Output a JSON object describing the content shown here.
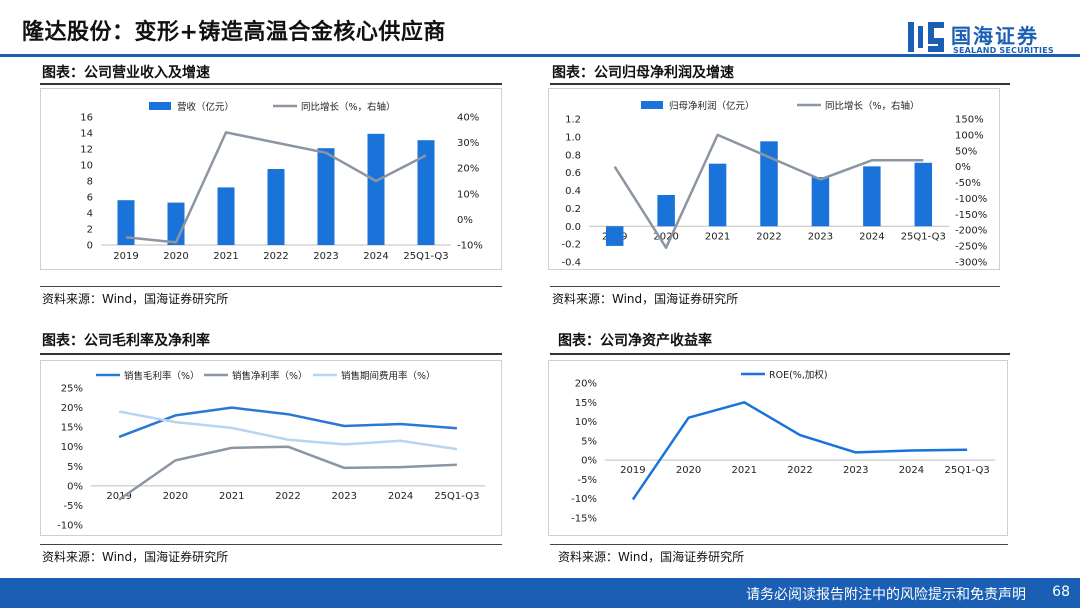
{
  "header": {
    "title": "隆达股份：变形+铸造高温合金核心供应商",
    "logo_cn": "国海证券",
    "logo_en": "SEALAND SECURITIES"
  },
  "panels": {
    "p1": {
      "title": "图表：公司营业收入及增速",
      "source": "资料来源：Wind，国海证券研究所"
    },
    "p2": {
      "title": "图表：公司归母净利润及增速",
      "source": "资料来源：Wind，国海证券研究所"
    },
    "p3": {
      "title": "图表：公司毛利率及净利率",
      "source": "资料来源：Wind，国海证券研究所"
    },
    "p4": {
      "title": "图表：公司净资产收益率",
      "source": "资料来源：Wind，国海证券研究所"
    }
  },
  "footer": {
    "disclaimer": "请务必阅读报告附注中的风险提示和免责声明",
    "page": "68"
  },
  "chart_data": [
    {
      "type": "bar",
      "categories": [
        "2019",
        "2020",
        "2021",
        "2022",
        "2023",
        "2024",
        "25Q1-Q3"
      ],
      "series": [
        {
          "name": "营收（亿元）",
          "kind": "bar",
          "axis": "left",
          "values": [
            5.6,
            5.3,
            7.2,
            9.5,
            12.1,
            13.9,
            13.1
          ]
        },
        {
          "name": "同比增长（%，右轴）",
          "kind": "line",
          "axis": "right",
          "values": [
            -7,
            -9,
            34,
            30,
            26,
            15,
            25
          ]
        }
      ],
      "ylim": [
        0,
        16
      ],
      "yticks": [
        "0",
        "2",
        "4",
        "6",
        "8",
        "10",
        "12",
        "14",
        "16"
      ],
      "y2lim": [
        -10,
        40
      ],
      "y2ticks": [
        "-10%",
        "0%",
        "10%",
        "20%",
        "30%",
        "40%"
      ],
      "colors": {
        "bar": "#1a73d9",
        "line": "#8c96a3"
      }
    },
    {
      "type": "bar",
      "categories": [
        "2019",
        "2020",
        "2021",
        "2022",
        "2023",
        "2024",
        "25Q1-Q3"
      ],
      "series": [
        {
          "name": "归母净利润（亿元）",
          "kind": "bar",
          "axis": "left",
          "values": [
            -0.22,
            0.35,
            0.7,
            0.95,
            0.55,
            0.67,
            0.71
          ]
        },
        {
          "name": "同比增长（%，右轴）",
          "kind": "line",
          "axis": "right",
          "values": [
            0,
            -255,
            100,
            30,
            -40,
            20,
            20
          ]
        }
      ],
      "ylim": [
        -0.4,
        1.2
      ],
      "yticks": [
        "-0.4",
        "-0.2",
        "0.0",
        "0.2",
        "0.4",
        "0.6",
        "0.8",
        "1.0",
        "1.2"
      ],
      "y2lim": [
        -300,
        150
      ],
      "y2ticks": [
        "-300%",
        "-250%",
        "-200%",
        "-150%",
        "-100%",
        "-50%",
        "0%",
        "50%",
        "100%",
        "150%"
      ],
      "colors": {
        "bar": "#1a73d9",
        "line": "#8c96a3"
      }
    },
    {
      "type": "line",
      "categories": [
        "2019",
        "2020",
        "2021",
        "2022",
        "2023",
        "2024",
        "25Q1-Q3"
      ],
      "series": [
        {
          "name": "销售毛利率（%）",
          "values": [
            12.5,
            18,
            20,
            18.3,
            15.3,
            15.8,
            14.7
          ],
          "color": "#2a78d6"
        },
        {
          "name": "销售净利率（%）",
          "values": [
            -3.5,
            6.5,
            9.7,
            10,
            4.6,
            4.8,
            5.4
          ],
          "color": "#8c96a3"
        },
        {
          "name": "销售期间费用率（%）",
          "values": [
            19,
            16.3,
            14.8,
            11.8,
            10.6,
            11.5,
            9.4
          ],
          "color": "#b7d4f2"
        }
      ],
      "ylim": [
        -10,
        25
      ],
      "yticks": [
        "-10%",
        "-5%",
        "0%",
        "5%",
        "10%",
        "15%",
        "20%",
        "25%"
      ]
    },
    {
      "type": "line",
      "categories": [
        "2019",
        "2020",
        "2021",
        "2022",
        "2023",
        "2024",
        "25Q1-Q3"
      ],
      "series": [
        {
          "name": "ROE(%,加权)",
          "values": [
            -10.2,
            11,
            15,
            6.5,
            2,
            2.5,
            2.7
          ],
          "color": "#1a73d9"
        }
      ],
      "ylim": [
        -15,
        20
      ],
      "yticks": [
        "-15%",
        "-10%",
        "-5%",
        "0%",
        "5%",
        "10%",
        "15%",
        "20%"
      ]
    }
  ]
}
